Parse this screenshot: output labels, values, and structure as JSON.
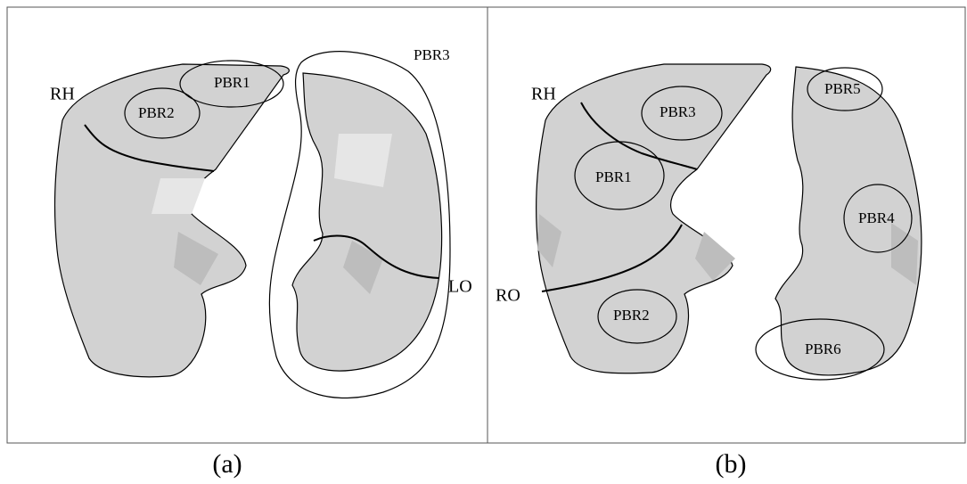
{
  "panels": [
    {
      "caption": "(a)",
      "labels": {
        "rh": "RH",
        "pbr1": "PBR1",
        "pbr2": "PBR2",
        "pbr3": "PBR3",
        "lo": "LO"
      }
    },
    {
      "caption": "(b)",
      "labels": {
        "rh": "RH",
        "ro": "RO",
        "pbr1": "PBR1",
        "pbr2": "PBR2",
        "pbr3": "PBR3",
        "pbr4": "PBR4",
        "pbr5": "PBR5",
        "pbr6": "PBR6"
      }
    }
  ]
}
